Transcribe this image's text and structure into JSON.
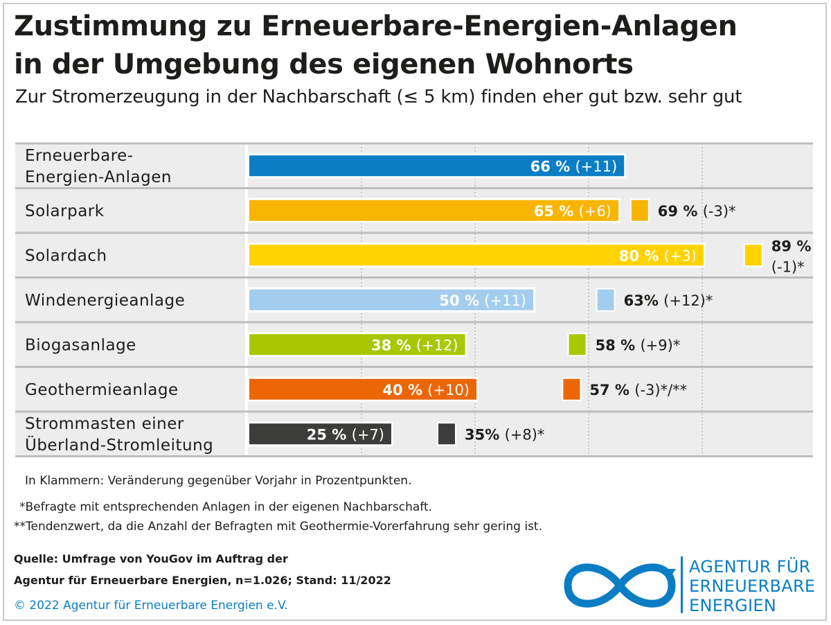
{
  "title_line1": "Zustimmung zu Erneuerbare-Energien-Anlagen",
  "title_line2": "in der Umgebung des eigenen Wohnorts",
  "subtitle": "Zur Stromerzeugung in der Nachbarschaft (≤ 5 km) finden eher gut bzw. sehr gut",
  "chart_data": {
    "type": "bar",
    "orientation": "horizontal",
    "xlim": [
      0,
      100
    ],
    "grid": true,
    "categories": [
      [
        "Erneuerbare-",
        "Energien-Anlagen"
      ],
      [
        "Solarpark"
      ],
      [
        "Solardach"
      ],
      [
        "Windenergieanlage"
      ],
      [
        "Biogasanlage"
      ],
      [
        "Geothermieanlage"
      ],
      [
        "Strommasten einer",
        "Überland-Stromleitung"
      ]
    ],
    "values": [
      66,
      65,
      80,
      50,
      38,
      40,
      25
    ],
    "value_labels": [
      "66 %",
      "65 %",
      "80 %",
      "50 %",
      "38 %",
      "40 %",
      "25 %"
    ],
    "change_labels": [
      "(+11)",
      "(+6)",
      "(+3)",
      "(+11)",
      "(+12)",
      "(+10)",
      "(+7)"
    ],
    "neighbour_values": [
      null,
      69,
      89,
      63,
      58,
      57,
      35
    ],
    "neighbour_value_labels": [
      null,
      "69 %",
      "89 %",
      "63%",
      "58 %",
      "57 %",
      "35%"
    ],
    "neighbour_change_labels": [
      null,
      "(-3)*",
      "(-1)*",
      "(+12)*",
      "(+9)*",
      "(-3)*/**",
      "(+8)*"
    ],
    "colors": [
      "#0a7dc4",
      "#f7b500",
      "#ffd200",
      "#a3cdee",
      "#a8c700",
      "#ec6608",
      "#3c3c3b"
    ]
  },
  "notes": {
    "brackets": "In Klammern: Veränderung gegenüber Vorjahr in Prozentpunkten.",
    "asterisk1": "*Befragte mit entsprechenden Anlagen in der eigenen Nachbarschaft.",
    "asterisk2": "**Tendenzwert, da die Anzahl der Befragten mit Geothermie-Vorerfahrung sehr gering ist."
  },
  "source": {
    "line1": "Quelle: Umfrage von YouGov im Auftrag der",
    "line2": "Agentur für Erneuerbare Energien, n=1.026; Stand: 11/2022"
  },
  "copyright": "© 2022 Agentur für Erneuerbare Energien e.V.",
  "logo": {
    "line1": "AGENTUR FÜR",
    "line2": "ERNEUERBARE",
    "line3": "ENERGIEN",
    "color": "#0a7dc4"
  }
}
